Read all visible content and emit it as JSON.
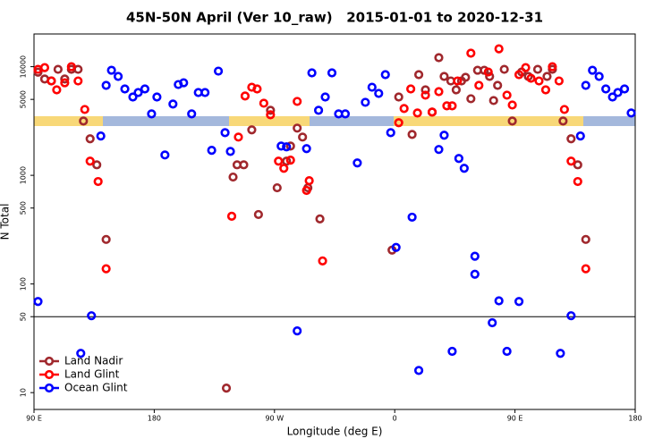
{
  "chart_data": {
    "type": "scatter",
    "title": "45N-50N April (Ver 10_raw)   2015-01-01 to 2020-12-31",
    "x_label": "Longitude (deg E)",
    "y_label": "N Total",
    "xlim": [
      -270,
      180
    ],
    "xticks": [
      {
        "value": -270,
        "label": "90 E"
      },
      {
        "value": -180,
        "label": "180"
      },
      {
        "value": -90,
        "label": "90 W"
      },
      0,
      {
        "value": 90,
        "label": "90 E"
      },
      180
    ],
    "ylim": [
      7,
      20000
    ],
    "yticks": [
      10,
      50,
      100,
      500,
      1000,
      5000,
      10000
    ],
    "log_y": true,
    "hline": 50,
    "legend": "lower left",
    "series": [
      {
        "name": "Land Nadir",
        "color": "#a0282d",
        "x": [
          -267,
          -262,
          -257,
          -252,
          -247,
          -242,
          -237,
          -233,
          -228,
          -223,
          -216,
          -126,
          -121,
          -118,
          -113,
          -107,
          -102,
          -93,
          -88,
          -81,
          -78,
          -73,
          -69,
          -65,
          -56,
          -2,
          3,
          13,
          18,
          23,
          28,
          33,
          37,
          42,
          46,
          50,
          53,
          57,
          62,
          67,
          71,
          74,
          77,
          82,
          88,
          95,
          100,
          107,
          114,
          118,
          126,
          132,
          137,
          143
        ],
        "values": [
          8900,
          7700,
          7400,
          9450,
          7700,
          9450,
          9450,
          3160,
          2170,
          1250,
          257,
          11,
          964,
          1250,
          1250,
          2620,
          436,
          3970,
          768,
          1350,
          1860,
          2720,
          2250,
          768,
          397,
          205,
          5260,
          2380,
          8440,
          6120,
          3820,
          12100,
          8130,
          7390,
          6120,
          7390,
          7980,
          5070,
          9270,
          9270,
          8130,
          4880,
          6730,
          9450,
          3160,
          8930,
          8130,
          9450,
          8130,
          9450,
          3160,
          2170,
          1250,
          257
        ]
      },
      {
        "name": "Land Glint",
        "color": "#ff0000",
        "x": [
          -267,
          -262,
          -257,
          -253,
          -247,
          -242,
          -237,
          -232,
          -228,
          -222,
          -216,
          -122,
          -117,
          -112,
          -107,
          -103,
          -98,
          -93,
          -87,
          -83,
          -78,
          -73,
          -66,
          -64,
          -54,
          3,
          7,
          12,
          17,
          23,
          28,
          33,
          39,
          43,
          47,
          57,
          63,
          70,
          78,
          84,
          88,
          93,
          98,
          102,
          108,
          113,
          118,
          123,
          127,
          132,
          137,
          143
        ],
        "values": [
          9450,
          9800,
          7390,
          6120,
          7110,
          10000,
          7390,
          4040,
          1350,
          877,
          138,
          420,
          2250,
          5370,
          6470,
          6240,
          4610,
          3610,
          1350,
          1160,
          1380,
          4790,
          726,
          893,
          163,
          3050,
          4120,
          6240,
          3750,
          5470,
          3820,
          5890,
          4360,
          4360,
          7390,
          13300,
          6730,
          8930,
          14600,
          5470,
          4440,
          8440,
          9800,
          7820,
          7390,
          6120,
          10000,
          7390,
          4040,
          1350,
          877,
          138
        ]
      },
      {
        "name": "Ocean Glint",
        "color": "#0000ff",
        "x": [
          -267,
          -235,
          -227,
          -220,
          -216,
          -212,
          -207,
          -202,
          -196,
          -192,
          -187,
          -182,
          -178,
          -172,
          -166,
          -162,
          -158,
          -152,
          -147,
          -142,
          -137,
          -132,
          -127,
          -123,
          -85,
          -81,
          -73,
          -66,
          -62,
          -57,
          -52,
          -47,
          -42,
          -37,
          -28,
          -22,
          -17,
          -12,
          -7,
          -3,
          1,
          13,
          18,
          33,
          37,
          43,
          48,
          52,
          60,
          60,
          73,
          78,
          84,
          93,
          124,
          132,
          139,
          143,
          148,
          153,
          158,
          163,
          167,
          172,
          177
        ],
        "values": [
          69,
          23,
          51,
          2300,
          6730,
          9270,
          8130,
          6240,
          5260,
          5780,
          6240,
          3680,
          5260,
          1540,
          4530,
          6850,
          7110,
          3680,
          5780,
          5780,
          1700,
          9100,
          2470,
          1660,
          1860,
          1830,
          37,
          1760,
          8770,
          3970,
          5260,
          8770,
          3680,
          3680,
          1300,
          4700,
          6470,
          5670,
          8440,
          2470,
          217,
          412,
          16,
          1730,
          2340,
          24,
          1430,
          1160,
          180,
          123,
          44,
          70,
          24,
          69,
          23,
          51,
          2300,
          6730,
          9270,
          8130,
          6240,
          5260,
          5780,
          6240,
          3750
        ]
      }
    ]
  }
}
